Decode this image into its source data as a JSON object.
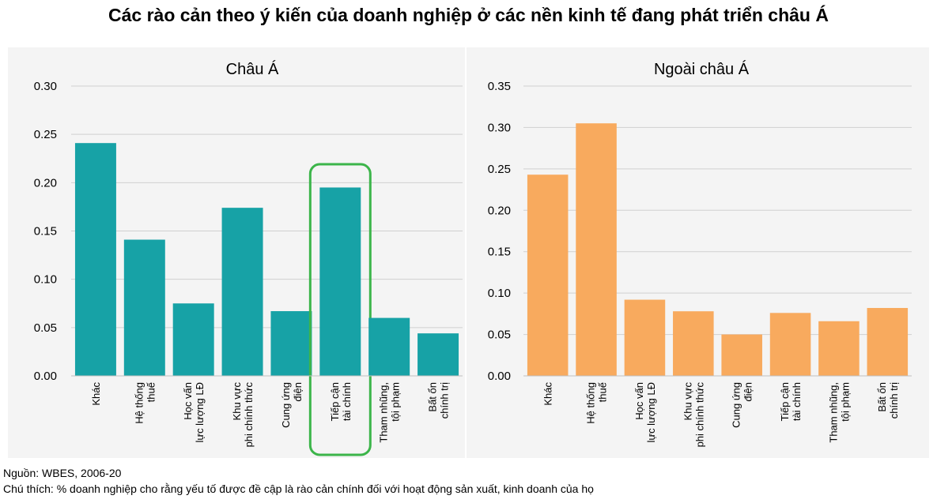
{
  "title": "Các rào cản theo ý kiến của doanh nghiệp ở các nền kinh tế đang phát triển châu Á",
  "source": "Nguồn: WBES, 2006-20",
  "note": "Chú thích: % doanh nghiệp cho rằng yếu tố được đề cập là rào cản chính đối với hoạt động sản xuất, kinh doanh của họ",
  "chart_data": [
    {
      "type": "bar",
      "title": "Châu Á",
      "color": "#17a2a6",
      "highlight_color": "#3cb54a",
      "highlight_category": "Tiếp cận tài chính",
      "ylim": [
        0,
        0.3
      ],
      "yticks": [
        "0.00",
        "0.05",
        "0.10",
        "0.15",
        "0.20",
        "0.25",
        "0.30"
      ],
      "categories": [
        [
          "Khác"
        ],
        [
          "Hệ thống",
          "thuế"
        ],
        [
          "Học vấn",
          "lực lượng LĐ"
        ],
        [
          "Khu vực",
          "phi chính thức"
        ],
        [
          "Cung ứng",
          "điện"
        ],
        [
          "Tiếp cận",
          "tài chính"
        ],
        [
          "Tham nhũng,",
          "tội phạm"
        ],
        [
          "Bất ổn",
          "chính trị"
        ]
      ],
      "values": [
        0.241,
        0.141,
        0.075,
        0.174,
        0.067,
        0.195,
        0.06,
        0.044
      ]
    },
    {
      "type": "bar",
      "title": "Ngoài châu Á",
      "color": "#f8aa5e",
      "ylim": [
        0,
        0.35
      ],
      "yticks": [
        "0.00",
        "0.05",
        "0.10",
        "0.15",
        "0.20",
        "0.25",
        "0.30",
        "0.35"
      ],
      "categories": [
        [
          "Khác"
        ],
        [
          "Hệ thống",
          "thuế"
        ],
        [
          "Học vấn",
          "lực lượng LĐ"
        ],
        [
          "Khu vực",
          "phi chính thức"
        ],
        [
          "Cung ứng",
          "điện"
        ],
        [
          "Tiếp cận",
          "tài chính"
        ],
        [
          "Tham nhũng,",
          "tội phạm"
        ],
        [
          "Bất ổn",
          "chính trị"
        ]
      ],
      "values": [
        0.243,
        0.305,
        0.092,
        0.078,
        0.05,
        0.076,
        0.066,
        0.082
      ]
    }
  ]
}
